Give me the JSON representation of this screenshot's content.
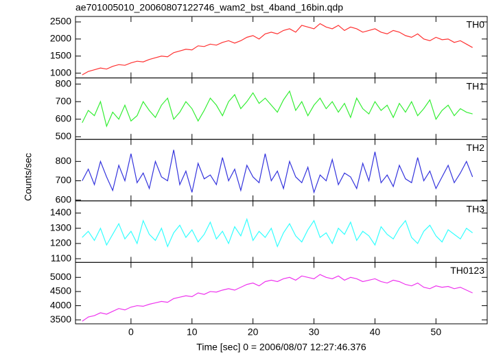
{
  "chart_data": [
    {
      "type": "line",
      "title": "ae701005010_20060807122746_wam2_bst_4band_16bin.qdp",
      "x": [
        -8,
        -7,
        -6,
        -5,
        -4,
        -3,
        -2,
        -1,
        0,
        1,
        2,
        3,
        4,
        5,
        6,
        7,
        8,
        9,
        10,
        11,
        12,
        13,
        14,
        15,
        16,
        17,
        18,
        19,
        20,
        21,
        22,
        23,
        24,
        25,
        26,
        27,
        28,
        29,
        30,
        31,
        32,
        33,
        34,
        35,
        36,
        37,
        38,
        39,
        40,
        41,
        42,
        43,
        44,
        45,
        46,
        47,
        48,
        49,
        50,
        51,
        52,
        53,
        54,
        55,
        56
      ],
      "series": [
        {
          "name": "TH0",
          "color": "#ff3030",
          "values": [
            950,
            1050,
            1100,
            1150,
            1120,
            1200,
            1250,
            1230,
            1300,
            1350,
            1330,
            1400,
            1450,
            1500,
            1480,
            1600,
            1650,
            1700,
            1680,
            1800,
            1780,
            1850,
            1820,
            1900,
            1950,
            1880,
            1950,
            2050,
            2100,
            2000,
            2150,
            2200,
            2150,
            2250,
            2300,
            2200,
            2400,
            2350,
            2300,
            2450,
            2350,
            2300,
            2400,
            2250,
            2350,
            2300,
            2200,
            2250,
            2300,
            2200,
            2150,
            2250,
            2200,
            2100,
            2050,
            2150,
            2000,
            1950,
            2050,
            1980,
            2000,
            1900,
            1950,
            1850,
            1750
          ]
        }
      ],
      "xlim": [
        -9.1,
        58.4
      ],
      "ylim": [
        860,
        2660
      ],
      "yticks": [
        1000,
        1500,
        2000,
        2500
      ]
    },
    {
      "type": "line",
      "x": [
        -8,
        -7,
        -6,
        -5,
        -4,
        -3,
        -2,
        -1,
        0,
        1,
        2,
        3,
        4,
        5,
        6,
        7,
        8,
        9,
        10,
        11,
        12,
        13,
        14,
        15,
        16,
        17,
        18,
        19,
        20,
        21,
        22,
        23,
        24,
        25,
        26,
        27,
        28,
        29,
        30,
        31,
        32,
        33,
        34,
        35,
        36,
        37,
        38,
        39,
        40,
        41,
        42,
        43,
        44,
        45,
        46,
        47,
        48,
        49,
        50,
        51,
        52,
        53,
        54,
        55,
        56
      ],
      "series": [
        {
          "name": "TH1",
          "color": "#33ee33",
          "values": [
            580,
            650,
            620,
            700,
            560,
            640,
            600,
            680,
            590,
            620,
            700,
            650,
            610,
            680,
            720,
            600,
            640,
            700,
            660,
            590,
            650,
            720,
            680,
            620,
            700,
            740,
            660,
            700,
            750,
            690,
            720,
            680,
            640,
            710,
            760,
            650,
            700,
            620,
            680,
            720,
            660,
            700,
            640,
            690,
            610,
            720,
            660,
            630,
            700,
            650,
            680,
            610,
            690,
            640,
            700,
            620,
            660,
            710,
            600,
            650,
            680,
            620,
            660,
            640,
            630
          ]
        }
      ],
      "xlim": [
        -9.1,
        58.4
      ],
      "ylim": [
        485,
        835
      ],
      "yticks": [
        500,
        600,
        700,
        800
      ]
    },
    {
      "type": "line",
      "y_label": "Counts/sec",
      "x": [
        -8,
        -7,
        -6,
        -5,
        -4,
        -3,
        -2,
        -1,
        0,
        1,
        2,
        3,
        4,
        5,
        6,
        7,
        8,
        9,
        10,
        11,
        12,
        13,
        14,
        15,
        16,
        17,
        18,
        19,
        20,
        21,
        22,
        23,
        24,
        25,
        26,
        27,
        28,
        29,
        30,
        31,
        32,
        33,
        34,
        35,
        36,
        37,
        38,
        39,
        40,
        41,
        42,
        43,
        44,
        45,
        46,
        47,
        48,
        49,
        50,
        51,
        52,
        53,
        54,
        55,
        56
      ],
      "series": [
        {
          "name": "TH2",
          "color": "#3333dd",
          "values": [
            700,
            760,
            680,
            800,
            720,
            650,
            780,
            700,
            840,
            690,
            740,
            660,
            800,
            720,
            700,
            860,
            680,
            750,
            640,
            790,
            710,
            730,
            680,
            820,
            700,
            760,
            650,
            780,
            720,
            690,
            840,
            700,
            750,
            660,
            800,
            720,
            690,
            770,
            640,
            730,
            700,
            810,
            680,
            740,
            720,
            660,
            790,
            700,
            850,
            690,
            730,
            670,
            780,
            710,
            690,
            820,
            700,
            750,
            660,
            720,
            780,
            690,
            740,
            800,
            720
          ]
        }
      ],
      "xlim": [
        -9.1,
        58.4
      ],
      "ylim": [
        596,
        914
      ],
      "yticks": [
        600,
        700,
        800
      ]
    },
    {
      "type": "line",
      "x": [
        -8,
        -7,
        -6,
        -5,
        -4,
        -3,
        -2,
        -1,
        0,
        1,
        2,
        3,
        4,
        5,
        6,
        7,
        8,
        9,
        10,
        11,
        12,
        13,
        14,
        15,
        16,
        17,
        18,
        19,
        20,
        21,
        22,
        23,
        24,
        25,
        26,
        27,
        28,
        29,
        30,
        31,
        32,
        33,
        34,
        35,
        36,
        37,
        38,
        39,
        40,
        41,
        42,
        43,
        44,
        45,
        46,
        47,
        48,
        49,
        50,
        51,
        52,
        53,
        54,
        55,
        56
      ],
      "series": [
        {
          "name": "TH3",
          "color": "#33ffff",
          "values": [
            1240,
            1280,
            1220,
            1300,
            1190,
            1260,
            1330,
            1230,
            1280,
            1200,
            1350,
            1260,
            1220,
            1300,
            1180,
            1270,
            1320,
            1240,
            1290,
            1210,
            1260,
            1340,
            1230,
            1280,
            1200,
            1310,
            1250,
            1360,
            1220,
            1280,
            1240,
            1300,
            1180,
            1270,
            1330,
            1250,
            1210,
            1290,
            1350,
            1240,
            1270,
            1200,
            1300,
            1260,
            1340,
            1220,
            1280,
            1250,
            1190,
            1310,
            1260,
            1230,
            1300,
            1350,
            1240,
            1200,
            1280,
            1320,
            1250,
            1210,
            1290,
            1260,
            1230,
            1300,
            1270
          ]
        }
      ],
      "xlim": [
        -9.1,
        58.4
      ],
      "ylim": [
        1076,
        1480
      ],
      "yticks": [
        1100,
        1200,
        1300,
        1400
      ]
    },
    {
      "type": "line",
      "x_label": "Time [sec] 0 = 2006/08/07 12:27:46.376",
      "x": [
        -8,
        -7,
        -6,
        -5,
        -4,
        -3,
        -2,
        -1,
        0,
        1,
        2,
        3,
        4,
        5,
        6,
        7,
        8,
        9,
        10,
        11,
        12,
        13,
        14,
        15,
        16,
        17,
        18,
        19,
        20,
        21,
        22,
        23,
        24,
        25,
        26,
        27,
        28,
        29,
        30,
        31,
        32,
        33,
        34,
        35,
        36,
        37,
        38,
        39,
        40,
        41,
        42,
        43,
        44,
        45,
        46,
        47,
        48,
        49,
        50,
        51,
        52,
        53,
        54,
        55,
        56
      ],
      "series": [
        {
          "name": "TH0123",
          "color": "#ee33ee",
          "values": [
            3450,
            3600,
            3650,
            3750,
            3700,
            3800,
            3900,
            3850,
            3950,
            4000,
            3980,
            4050,
            4100,
            4150,
            4120,
            4250,
            4300,
            4350,
            4320,
            4450,
            4400,
            4500,
            4480,
            4550,
            4600,
            4550,
            4650,
            4750,
            4800,
            4700,
            4850,
            4900,
            4850,
            4950,
            5000,
            4900,
            5050,
            5000,
            4950,
            5100,
            5000,
            4950,
            5050,
            4900,
            5000,
            4950,
            4850,
            4900,
            4950,
            4850,
            4800,
            4900,
            4850,
            4750,
            4700,
            4800,
            4650,
            4600,
            4700,
            4650,
            4680,
            4600,
            4650,
            4550,
            4450
          ]
        }
      ],
      "xlim": [
        -9.1,
        58.4
      ],
      "ylim": [
        3360,
        5530
      ],
      "yticks": [
        3500,
        4000,
        4500,
        5000
      ],
      "xticks": [
        0,
        10,
        20,
        30,
        40,
        50
      ]
    }
  ]
}
